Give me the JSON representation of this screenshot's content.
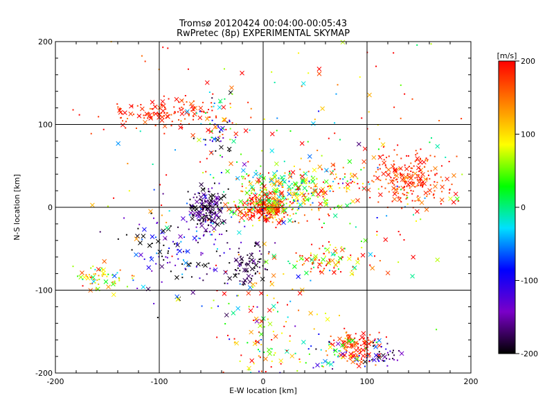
{
  "chart_data": {
    "type": "scatter",
    "title": "Tromsø 20120424 00:04:00-00:05:43",
    "subtitle": "RwPretec (8p) EXPERIMENTAL SKYMAP",
    "xlabel": "E-W location [km]",
    "ylabel": "N-S location [km]",
    "xlim": [
      -200,
      200
    ],
    "ylim": [
      -200,
      200
    ],
    "xticks": [
      "-200",
      "-100",
      "0",
      "100",
      "200"
    ],
    "yticks": [
      "-200",
      "-100",
      "0",
      "100",
      "200"
    ],
    "grid": true,
    "colorbar": {
      "label": "[m/s]",
      "range": [
        -200,
        200
      ],
      "ticks": [
        "200",
        "100",
        "0",
        "-100",
        "-200"
      ],
      "colors": [
        "#000000",
        "#7a00c8",
        "#0000ff",
        "#00e0ff",
        "#00ff00",
        "#ffff00",
        "#ff8000",
        "#ff0000"
      ]
    },
    "clusters": [
      {
        "x": 140,
        "y": 35,
        "sx": 18,
        "sy": 18,
        "n": 230,
        "v": 180,
        "vs": 25
      },
      {
        "x": 0,
        "y": 0,
        "sx": 14,
        "sy": 10,
        "n": 300,
        "v": 160,
        "vs": 70
      },
      {
        "x": 20,
        "y": 20,
        "sx": 18,
        "sy": 15,
        "n": 160,
        "v": 40,
        "vs": 60
      },
      {
        "x": 50,
        "y": 25,
        "sx": 25,
        "sy": 15,
        "n": 120,
        "v": 120,
        "vs": 90
      },
      {
        "x": -55,
        "y": 0,
        "sx": 8,
        "sy": 12,
        "n": 160,
        "v": -180,
        "vs": 35
      },
      {
        "x": -75,
        "y": -50,
        "sx": 30,
        "sy": 30,
        "n": 160,
        "v": -140,
        "vs": 70
      },
      {
        "x": -95,
        "y": 115,
        "sx": 30,
        "sy": 10,
        "n": 150,
        "v": 185,
        "vs": 20
      },
      {
        "x": -40,
        "y": 95,
        "sx": 12,
        "sy": 25,
        "n": 70,
        "v": -40,
        "vs": 120
      },
      {
        "x": 90,
        "y": -170,
        "sx": 10,
        "sy": 10,
        "n": 110,
        "v": 180,
        "vs": 30
      },
      {
        "x": 70,
        "y": -175,
        "sx": 18,
        "sy": 12,
        "n": 60,
        "v": 0,
        "vs": 100
      },
      {
        "x": 115,
        "y": -180,
        "sx": 8,
        "sy": 8,
        "n": 35,
        "v": -150,
        "vs": 60
      },
      {
        "x": 60,
        "y": -65,
        "sx": 20,
        "sy": 10,
        "n": 90,
        "v": 140,
        "vs": 80
      },
      {
        "x": -15,
        "y": -70,
        "sx": 10,
        "sy": 12,
        "n": 80,
        "v": -190,
        "vs": 20
      },
      {
        "x": -155,
        "y": -85,
        "sx": 15,
        "sy": 8,
        "n": 60,
        "v": 90,
        "vs": 50
      },
      {
        "x": 0,
        "y": -150,
        "sx": 25,
        "sy": 35,
        "n": 110,
        "v": 100,
        "vs": 110
      },
      {
        "x": 50,
        "y": 50,
        "sx": 100,
        "sy": 90,
        "n": 260,
        "v": 120,
        "vs": 110
      }
    ]
  }
}
